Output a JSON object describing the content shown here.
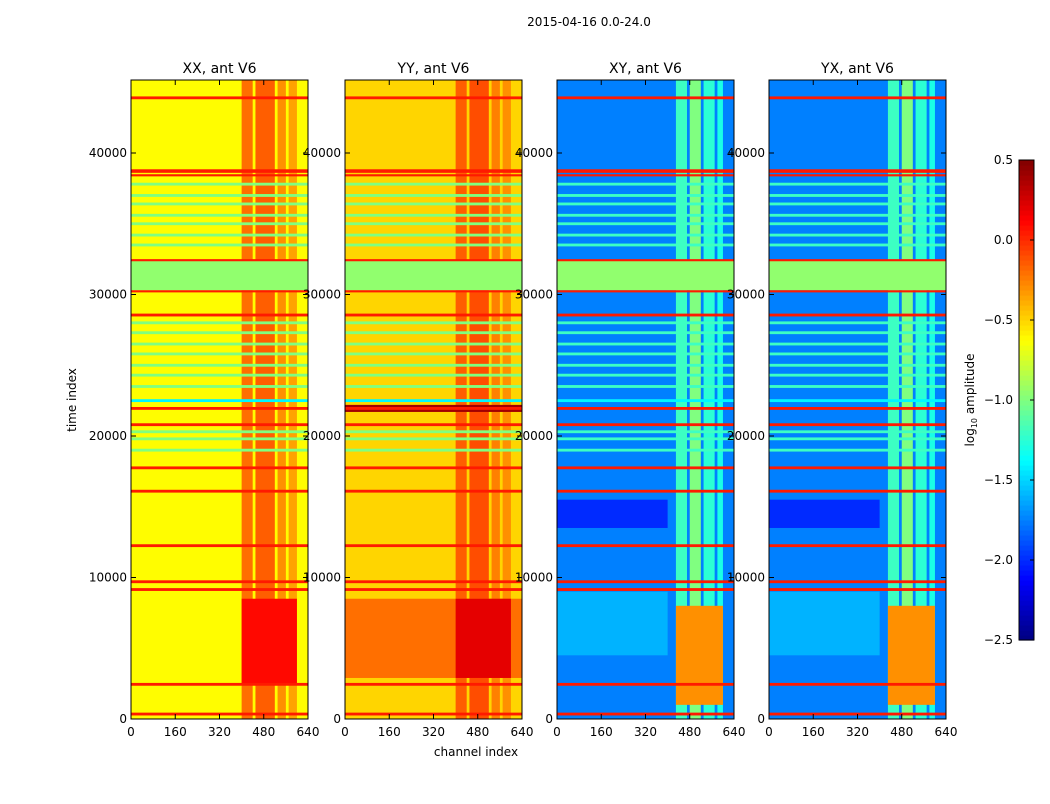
{
  "chart_data": {
    "type": "heatmap",
    "title": "2015-04-16 0.0-24.0",
    "xlabel": "channel index",
    "ylabel": "time index",
    "xlim": [
      0,
      640
    ],
    "ylim": [
      0,
      45160
    ],
    "xticks": [
      0,
      160,
      320,
      480,
      640
    ],
    "yticks": [
      0,
      10000,
      20000,
      30000,
      40000
    ],
    "colorbar": {
      "label_main": "log",
      "label_sub": "10",
      "label_tail": " amplitude",
      "range": [
        -2.5,
        0.5
      ],
      "ticks": [
        "0.5",
        "0.0",
        "−0.5",
        "−1.0",
        "−1.5",
        "−2.0",
        "−2.5"
      ],
      "tick_values": [
        0.5,
        0.0,
        -0.5,
        -1.0,
        -1.5,
        -2.0,
        -2.5
      ],
      "colormap": "jet"
    },
    "panels": [
      {
        "title": "XX, ant V6",
        "base": -0.62,
        "columns": [
          [
            400,
            440,
            -0.2
          ],
          [
            450,
            520,
            -0.15
          ],
          [
            530,
            560,
            -0.3
          ],
          [
            570,
            600,
            -0.35
          ]
        ],
        "blocks": [
          [
            2500,
            8500,
            400,
            600,
            0.1
          ]
        ]
      },
      {
        "title": "YY, ant V6",
        "base": -0.5,
        "columns": [
          [
            400,
            440,
            -0.15
          ],
          [
            450,
            520,
            -0.1
          ],
          [
            530,
            560,
            -0.25
          ],
          [
            570,
            600,
            -0.3
          ]
        ],
        "blocks": [
          [
            2900,
            8500,
            0,
            640,
            -0.2
          ],
          [
            2900,
            8500,
            400,
            600,
            0.2
          ],
          [
            21700,
            22200,
            0,
            640,
            0.4
          ]
        ]
      },
      {
        "title": "XY, ant V6",
        "base": -1.75,
        "columns": [
          [
            430,
            470,
            -1.2
          ],
          [
            480,
            520,
            -1.0
          ],
          [
            530,
            570,
            -1.25
          ],
          [
            580,
            600,
            -1.3
          ]
        ],
        "blocks": [
          [
            1000,
            8000,
            430,
            600,
            -0.3
          ],
          [
            13500,
            15500,
            0,
            400,
            -2.0
          ],
          [
            4500,
            9000,
            0,
            400,
            -1.6
          ]
        ]
      },
      {
        "title": "YX, ant V6",
        "base": -1.75,
        "columns": [
          [
            430,
            470,
            -1.2
          ],
          [
            480,
            520,
            -1.0
          ],
          [
            530,
            570,
            -1.25
          ],
          [
            580,
            600,
            -1.3
          ]
        ],
        "blocks": [
          [
            1000,
            8000,
            430,
            600,
            -0.3
          ],
          [
            13500,
            15500,
            0,
            400,
            -2.0
          ],
          [
            4500,
            9000,
            0,
            400,
            -1.6
          ]
        ]
      }
    ],
    "common_bands": [
      {
        "t0": 30300,
        "t1": 32400,
        "value": -0.95
      },
      {
        "t0": 33400,
        "t1": 33600,
        "value": -1.0
      },
      {
        "t0": 34100,
        "t1": 34300,
        "value": -1.0
      },
      {
        "t0": 34900,
        "t1": 35100,
        "value": -1.0
      },
      {
        "t0": 35500,
        "t1": 35700,
        "value": -1.0
      },
      {
        "t0": 36300,
        "t1": 36500,
        "value": -1.0
      },
      {
        "t0": 36900,
        "t1": 37100,
        "value": -1.0
      },
      {
        "t0": 37700,
        "t1": 37900,
        "value": -1.0
      },
      {
        "t0": 23400,
        "t1": 23600,
        "value": -1.0
      },
      {
        "t0": 24200,
        "t1": 24400,
        "value": -1.0
      },
      {
        "t0": 24900,
        "t1": 25100,
        "value": -1.0
      },
      {
        "t0": 25700,
        "t1": 25900,
        "value": -1.0
      },
      {
        "t0": 26400,
        "t1": 26600,
        "value": -1.0
      },
      {
        "t0": 27200,
        "t1": 27400,
        "value": -1.0
      },
      {
        "t0": 27900,
        "t1": 28100,
        "value": -1.0
      },
      {
        "t0": 18900,
        "t1": 19100,
        "value": -1.0
      },
      {
        "t0": 19700,
        "t1": 19900,
        "value": -1.0
      },
      {
        "t0": 20200,
        "t1": 20400,
        "value": -1.0
      },
      {
        "t0": 22400,
        "t1": 22600,
        "value": -1.4
      },
      {
        "t0": 43800,
        "t1": 44000,
        "value": 0.05
      },
      {
        "t0": 38600,
        "t1": 38850,
        "value": 0.05
      },
      {
        "t0": 38350,
        "t1": 38500,
        "value": 0.05
      },
      {
        "t0": 32350,
        "t1": 32500,
        "value": 0.05
      },
      {
        "t0": 30150,
        "t1": 30300,
        "value": 0.05
      },
      {
        "t0": 28450,
        "t1": 28650,
        "value": 0.05
      },
      {
        "t0": 21850,
        "t1": 22050,
        "value": 0.05
      },
      {
        "t0": 20700,
        "t1": 20900,
        "value": 0.05
      },
      {
        "t0": 17650,
        "t1": 17850,
        "value": 0.05
      },
      {
        "t0": 16000,
        "t1": 16200,
        "value": 0.05
      },
      {
        "t0": 12150,
        "t1": 12350,
        "value": 0.05
      },
      {
        "t0": 9600,
        "t1": 9800,
        "value": 0.05
      },
      {
        "t0": 9050,
        "t1": 9250,
        "value": 0.05
      },
      {
        "t0": 2350,
        "t1": 2550,
        "value": 0.05
      },
      {
        "t0": 250,
        "t1": 450,
        "value": 0.05
      }
    ]
  }
}
